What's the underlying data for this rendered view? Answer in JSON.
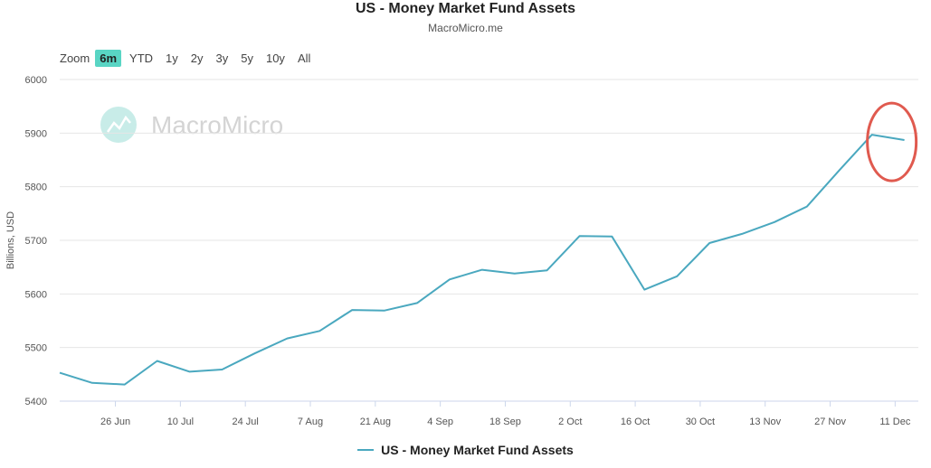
{
  "header": {
    "title": "US - Money Market Fund Assets",
    "subtitle": "MacroMicro.me"
  },
  "zoom": {
    "label": "Zoom",
    "options": [
      "6m",
      "YTD",
      "1y",
      "2y",
      "3y",
      "5y",
      "10y",
      "All"
    ],
    "selected": "6m"
  },
  "watermark": "MacroMicro",
  "colors": {
    "series": "#4aa8bf",
    "highlight_circle": "#e05a4f",
    "active_zoom": "#59d5c4"
  },
  "chart_data": {
    "type": "line",
    "title": "US - Money Market Fund Assets",
    "ylabel": "Billions, USD",
    "ylim": [
      5400,
      6000
    ],
    "yticks": [
      5400,
      5500,
      5600,
      5700,
      5800,
      5900,
      6000
    ],
    "xticks": [
      "26 Jun",
      "10 Jul",
      "24 Jul",
      "7 Aug",
      "21 Aug",
      "4 Sep",
      "18 Sep",
      "2 Oct",
      "16 Oct",
      "30 Oct",
      "13 Nov",
      "27 Nov",
      "11 Dec"
    ],
    "grid": true,
    "legend": "bottom-center",
    "series": [
      {
        "name": "US - Money Market Fund Assets",
        "x": [
          "2023-06-14",
          "2023-06-21",
          "2023-06-28",
          "2023-07-05",
          "2023-07-12",
          "2023-07-19",
          "2023-07-26",
          "2023-08-02",
          "2023-08-09",
          "2023-08-16",
          "2023-08-23",
          "2023-08-30",
          "2023-09-06",
          "2023-09-13",
          "2023-09-20",
          "2023-09-27",
          "2023-10-04",
          "2023-10-11",
          "2023-10-18",
          "2023-10-25",
          "2023-11-01",
          "2023-11-08",
          "2023-11-15",
          "2023-11-22",
          "2023-11-29",
          "2023-12-06",
          "2023-12-13"
        ],
        "values": [
          5453,
          5434,
          5431,
          5475,
          5455,
          5459,
          5489,
          5517,
          5531,
          5570,
          5569,
          5583,
          5627,
          5645,
          5638,
          5644,
          5708,
          5707,
          5608,
          5633,
          5695,
          5712,
          5734,
          5763,
          5831,
          5897,
          5887
        ]
      }
    ],
    "annotations": [
      {
        "type": "circle",
        "around": "2023-12-06 to 2023-12-13"
      }
    ]
  }
}
